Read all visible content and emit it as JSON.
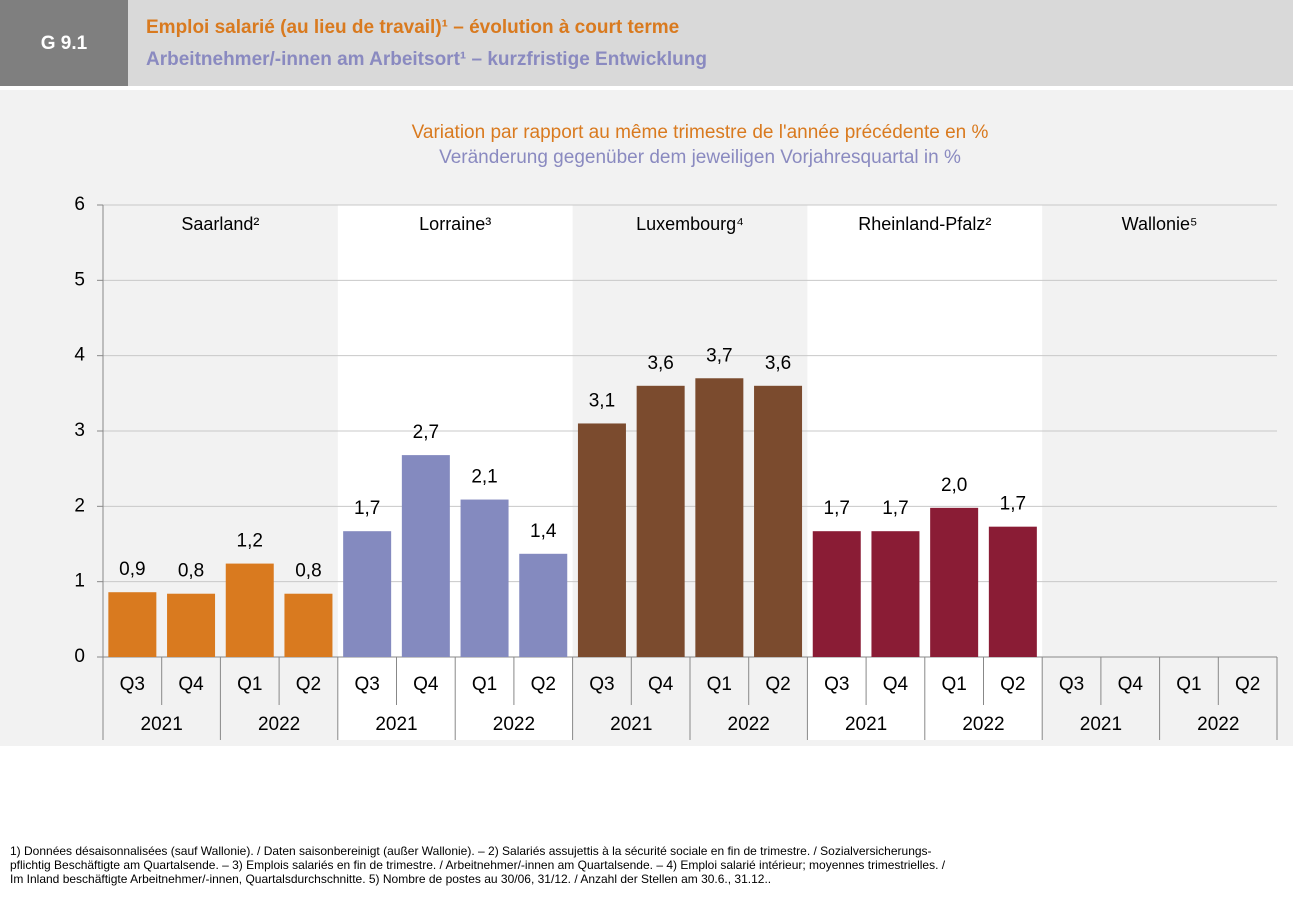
{
  "header": {
    "code": "G 9.1",
    "title_fr": "Emploi salarié (au lieu de travail)¹ – évolution à court terme",
    "title_de": "Arbeitnehmer/-innen am Arbeitsort¹ – kurzfristige Entwicklung"
  },
  "chart_data": {
    "type": "bar",
    "subtitle_fr": "Variation par rapport au même trimestre de l'année précédente en %",
    "subtitle_de": "Veränderung gegenüber dem jeweiligen Vorjahresquartal in %",
    "ylim": [
      0,
      6
    ],
    "yticks": [
      0,
      1,
      2,
      3,
      4,
      5,
      6
    ],
    "grid": true,
    "series": [
      {
        "name": "Saarland²",
        "color": "#d97a1f",
        "categories": [
          "Q3",
          "Q4",
          "Q1",
          "Q2"
        ],
        "years": [
          "2021",
          "2022"
        ],
        "values": [
          0.86,
          0.84,
          1.24,
          0.84
        ],
        "value_labels": [
          "0,9",
          "0,8",
          "1,2",
          "0,8"
        ]
      },
      {
        "name": "Lorraine³",
        "color": "#848abf",
        "categories": [
          "Q3",
          "Q4",
          "Q1",
          "Q2"
        ],
        "years": [
          "2021",
          "2022"
        ],
        "values": [
          1.67,
          2.68,
          2.09,
          1.37
        ],
        "value_labels": [
          "1,7",
          "2,7",
          "2,1",
          "1,4"
        ]
      },
      {
        "name": "Luxembourg⁴",
        "color": "#7b4b2e",
        "categories": [
          "Q3",
          "Q4",
          "Q1",
          "Q2"
        ],
        "years": [
          "2021",
          "2022"
        ],
        "values": [
          3.1,
          3.6,
          3.7,
          3.6
        ],
        "value_labels": [
          "3,1",
          "3,6",
          "3,7",
          "3,6"
        ]
      },
      {
        "name": "Rheinland-Pfalz²",
        "color": "#8a1c35",
        "categories": [
          "Q3",
          "Q4",
          "Q1",
          "Q2"
        ],
        "years": [
          "2021",
          "2022"
        ],
        "values": [
          1.67,
          1.67,
          1.98,
          1.73
        ],
        "value_labels": [
          "1,7",
          "1,7",
          "2,0",
          "1,7"
        ]
      },
      {
        "name": "Wallonie⁵",
        "color": "#888888",
        "categories": [
          "Q3",
          "Q4",
          "Q1",
          "Q2"
        ],
        "years": [
          "2021",
          "2022"
        ],
        "values": [
          null,
          null,
          null,
          null
        ]
      }
    ]
  },
  "footnotes": [
    "1) Données désaisonnalisées (sauf Wallonie). / Daten saisonbereinigt (außer Wallonie). – 2) Salariés assujettis à la sécurité sociale en fin de trimestre. / Sozialversicherungs-",
    "pflichtig Beschäftigte am Quartalsende. – 3) Emplois salariés en fin de trimestre. / Arbeitnehmer/-innen am Quartalsende. – 4) Emploi salarié intérieur; moyennes trimestrielles. /",
    "Im Inland beschäftigte Arbeitnehmer/-innen, Quartalsdurchschnitte. 5) Nombre de postes au 30/06, 31/12. / Anzahl der Stellen am 30.6., 31.12.."
  ]
}
